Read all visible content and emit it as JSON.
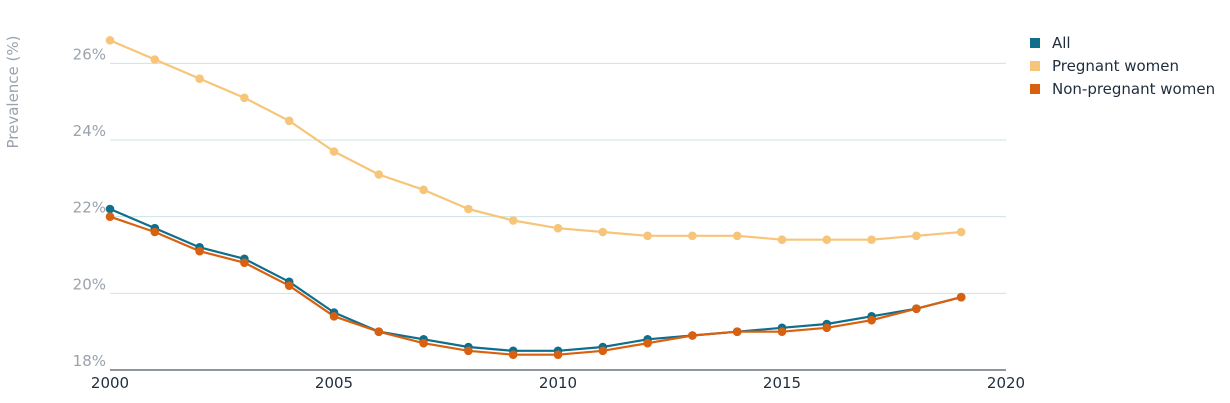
{
  "chart_data": {
    "type": "line",
    "title": "",
    "xlabel": "",
    "ylabel": "Prevalence (%)",
    "xlim": [
      2000,
      2020
    ],
    "ylim": [
      18,
      27
    ],
    "x_ticks": [
      2000,
      2005,
      2010,
      2015,
      2020
    ],
    "x_tick_labels": [
      "2000",
      "2005",
      "2010",
      "2015",
      "2020"
    ],
    "y_ticks": [
      18,
      20,
      22,
      24,
      26
    ],
    "y_tick_labels": [
      "18%",
      "20%",
      "22%",
      "24%",
      "26%"
    ],
    "grid": "horizontal",
    "legend_position": "top-right",
    "x": [
      2000,
      2001,
      2002,
      2003,
      2004,
      2005,
      2006,
      2007,
      2008,
      2009,
      2010,
      2011,
      2012,
      2013,
      2014,
      2015,
      2016,
      2017,
      2018,
      2019
    ],
    "series": [
      {
        "name": "Pregnant women",
        "color": "#f7c57a",
        "values": [
          26.6,
          26.1,
          25.6,
          25.1,
          24.5,
          23.7,
          23.1,
          22.7,
          22.2,
          21.9,
          21.7,
          21.6,
          21.5,
          21.5,
          21.5,
          21.4,
          21.4,
          21.4,
          21.5,
          21.6
        ]
      },
      {
        "name": "All",
        "color": "#0e6e8c",
        "values": [
          22.2,
          21.7,
          21.2,
          20.9,
          20.3,
          19.5,
          19.0,
          18.8,
          18.6,
          18.5,
          18.5,
          18.6,
          18.8,
          18.9,
          19.0,
          19.1,
          19.2,
          19.4,
          19.6,
          19.9
        ]
      },
      {
        "name": "Non-pregnant women",
        "color": "#d9600f",
        "values": [
          22.0,
          21.6,
          21.1,
          20.8,
          20.2,
          19.4,
          19.0,
          18.7,
          18.5,
          18.4,
          18.4,
          18.5,
          18.7,
          18.9,
          19.0,
          19.0,
          19.1,
          19.3,
          19.6,
          19.9
        ]
      }
    ],
    "legend_order": [
      "All",
      "Pregnant women",
      "Non-pregnant women"
    ]
  }
}
